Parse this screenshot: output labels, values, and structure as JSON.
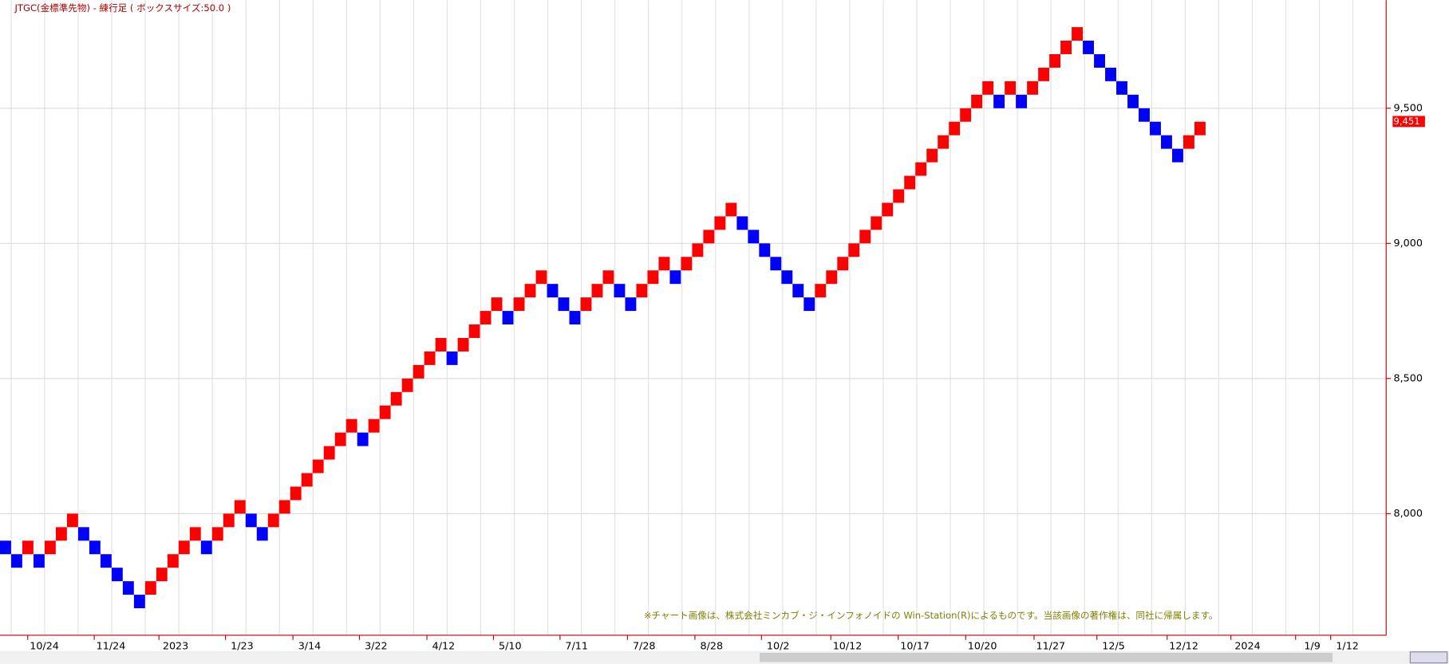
{
  "chart_data": {
    "type": "renko",
    "title": "JTGC(金標準先物) - 練行足 ( ボックスサイズ:50.0 )",
    "box_size": 50,
    "up_color": "#ff0000",
    "down_color": "#0000ff",
    "values": [
      7850,
      7800,
      7900,
      7800,
      7900,
      7950,
      8000,
      7900,
      7850,
      7800,
      7750,
      7700,
      7650,
      7750,
      7800,
      7850,
      7900,
      7950,
      7850,
      7950,
      8000,
      8050,
      7950,
      7900,
      8000,
      8050,
      8100,
      8150,
      8200,
      8250,
      8300,
      8350,
      8250,
      8350,
      8400,
      8450,
      8500,
      8550,
      8600,
      8650,
      8550,
      8650,
      8700,
      8750,
      8800,
      8700,
      8800,
      8850,
      8900,
      8800,
      8750,
      8700,
      8800,
      8850,
      8900,
      8800,
      8750,
      8850,
      8900,
      8950,
      8850,
      8950,
      9000,
      9050,
      9100,
      9150,
      9050,
      9000,
      8950,
      8900,
      8850,
      8800,
      8750,
      8850,
      8900,
      8950,
      9000,
      9050,
      9100,
      9150,
      9200,
      9250,
      9300,
      9350,
      9400,
      9450,
      9500,
      9550,
      9600,
      9500,
      9600,
      9500,
      9600,
      9650,
      9700,
      9750,
      9800,
      9700,
      9650,
      9600,
      9550,
      9500,
      9450,
      9400,
      9350,
      9300,
      9400,
      9450
    ],
    "x_labels": [
      "10/24",
      "11/24",
      "2023",
      "1/23",
      "3/14",
      "3/22",
      "4/12",
      "5/10",
      "7/11",
      "7/28",
      "8/28",
      "10/2",
      "10/12",
      "10/17",
      "10/20",
      "11/27",
      "12/5",
      "12/12",
      "2024",
      "1/9",
      "1/12"
    ],
    "ylim": [
      7550,
      9900
    ],
    "yticks": [
      {
        "value": 8000,
        "label": "8,000"
      },
      {
        "value": 8500,
        "label": "8,500"
      },
      {
        "value": 9000,
        "label": "9,000"
      },
      {
        "value": 9500,
        "label": "9,500"
      }
    ],
    "last_price": {
      "value": 9451,
      "label": "9,451"
    },
    "grid": true,
    "note": "※チャート画像は、株式会社ミンカブ・ジ・インフォノイドの Win-Station(R)によるものです。当該画像の著作権は、同社に帰属します。"
  }
}
